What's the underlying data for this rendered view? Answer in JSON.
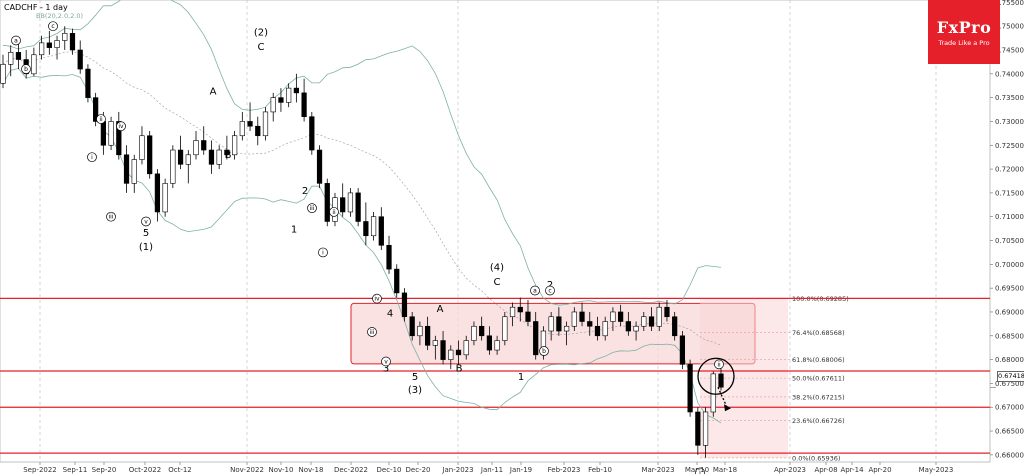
{
  "title": "CADCHF - 1 day",
  "indicator_label": "BB(20,2.0,2.0)",
  "logo": {
    "brand": "FxPro",
    "tagline": "Trade Like a Pro"
  },
  "current_price": "0.67418",
  "colors": {
    "support_line": "#e5202a",
    "box_fill": "#f9d6d6",
    "box_border": "#e5202a",
    "bollinger": "#7fb0a8",
    "candle_up": "#ffffff",
    "candle_down": "#000000",
    "logo_bg": "#e5202a"
  },
  "chart_data": {
    "type": "candlestick",
    "symbol": "CADCHF",
    "timeframe": "1 day",
    "ylim": [
      0.6585,
      0.7555
    ],
    "y_ticks": [
      "0.75500",
      "0.75000",
      "0.74500",
      "0.74000",
      "0.73500",
      "0.73000",
      "0.72500",
      "0.72000",
      "0.71500",
      "0.71000",
      "0.70500",
      "0.70000",
      "0.69500",
      "0.69000",
      "0.68500",
      "0.68000",
      "0.67500",
      "0.67000",
      "0.66500",
      "0.66000"
    ],
    "x_ticks": [
      "Sep-2022",
      "Sep-11",
      "Sep-20",
      "Oct-2022",
      "Oct-12",
      "Nov-2022",
      "Nov-10",
      "Nov-18",
      "Dec-2022",
      "Dec-10",
      "Dec-20",
      "Jan-2023",
      "Jan-11",
      "Jan-19",
      "Feb-2023",
      "Feb-10",
      "Mar-2023",
      "Mar-10",
      "Mar-18",
      "Apr-2023",
      "Apr-08",
      "Apr-14",
      "Apr-20",
      "May-2023"
    ],
    "horizontal_levels": [
      0.69285,
      0.6776,
      0.67,
      0.66036
    ],
    "fibonacci": [
      {
        "label": "100.0%(0.69285)",
        "value": 0.69285
      },
      {
        "label": "76.4%(0.68568)",
        "value": 0.68568
      },
      {
        "label": "61.8%(0.68006)",
        "value": 0.68006
      },
      {
        "label": "50.0%(0.67611)",
        "value": 0.67611
      },
      {
        "label": "38.2%(0.67215)",
        "value": 0.67215
      },
      {
        "label": "23.6%(0.66726)",
        "value": 0.66726
      },
      {
        "label": "0.0%(0.65936)",
        "value": 0.65936
      }
    ],
    "range_box": {
      "top": 0.6918,
      "bottom": 0.6791
    },
    "wave_labels": [
      {
        "text": "(2)",
        "x": 261,
        "y": 0.748
      },
      {
        "text": "C",
        "x": 261,
        "y": 0.745
      },
      {
        "text": "A",
        "x": 213,
        "y": 0.7357
      },
      {
        "text": "B",
        "x": 228,
        "y": 0.7223
      },
      {
        "text": "5",
        "x": 146,
        "y": 0.706
      },
      {
        "text": "(1)",
        "x": 146,
        "y": 0.703
      },
      {
        "text": "2",
        "x": 305,
        "y": 0.7148
      },
      {
        "text": "1",
        "x": 294,
        "y": 0.7067
      },
      {
        "text": "4",
        "x": 390,
        "y": 0.689
      },
      {
        "text": "3",
        "x": 386,
        "y": 0.6775
      },
      {
        "text": "5",
        "x": 415,
        "y": 0.6757
      },
      {
        "text": "(3)",
        "x": 415,
        "y": 0.673
      },
      {
        "text": "A",
        "x": 440,
        "y": 0.69
      },
      {
        "text": "B",
        "x": 459,
        "y": 0.6775
      },
      {
        "text": "(4)",
        "x": 497,
        "y": 0.6987
      },
      {
        "text": "C",
        "x": 497,
        "y": 0.6957
      },
      {
        "text": "2",
        "x": 550,
        "y": 0.695
      },
      {
        "text": "1",
        "x": 521,
        "y": 0.6757
      }
    ],
    "circled_labels": [
      {
        "text": "a",
        "x": 16,
        "y": 0.747
      },
      {
        "text": "b",
        "x": 26,
        "y": 0.741
      },
      {
        "text": "c",
        "x": 53,
        "y": 0.75
      },
      {
        "text": "ii",
        "x": 101,
        "y": 0.7305
      },
      {
        "text": "iv",
        "x": 121,
        "y": 0.729
      },
      {
        "text": "i",
        "x": 92,
        "y": 0.7225
      },
      {
        "text": "iii",
        "x": 111,
        "y": 0.71
      },
      {
        "text": "v",
        "x": 146,
        "y": 0.709
      },
      {
        "text": "iii",
        "x": 312,
        "y": 0.7118
      },
      {
        "text": "ii",
        "x": 334,
        "y": 0.711
      },
      {
        "text": "i",
        "x": 323,
        "y": 0.7025
      },
      {
        "text": "iv",
        "x": 377,
        "y": 0.6928
      },
      {
        "text": "iii",
        "x": 372,
        "y": 0.6858
      },
      {
        "text": "v",
        "x": 386,
        "y": 0.6796
      },
      {
        "text": "a",
        "x": 535,
        "y": 0.6945
      },
      {
        "text": "c",
        "x": 550,
        "y": 0.6945
      },
      {
        "text": "b",
        "x": 544,
        "y": 0.6818
      },
      {
        "text": "i",
        "x": 700,
        "y": 0.6563
      },
      {
        "text": "ii",
        "x": 719,
        "y": 0.679
      }
    ],
    "series": [
      {
        "name": "CADCHF",
        "ohlc": [
          [
            0.738,
            0.744,
            0.737,
            0.742
          ],
          [
            0.742,
            0.746,
            0.7395,
            0.7445
          ],
          [
            0.7445,
            0.747,
            0.741,
            0.743
          ],
          [
            0.743,
            0.745,
            0.739,
            0.74
          ],
          [
            0.74,
            0.7455,
            0.7395,
            0.744
          ],
          [
            0.744,
            0.748,
            0.743,
            0.7465
          ],
          [
            0.7465,
            0.749,
            0.744,
            0.7455
          ],
          [
            0.7455,
            0.748,
            0.743,
            0.747
          ],
          [
            0.747,
            0.75,
            0.745,
            0.7485
          ],
          [
            0.7485,
            0.7495,
            0.744,
            0.745
          ],
          [
            0.745,
            0.747,
            0.74,
            0.741
          ],
          [
            0.741,
            0.742,
            0.734,
            0.735
          ],
          [
            0.735,
            0.736,
            0.729,
            0.73
          ],
          [
            0.73,
            0.732,
            0.723,
            0.725
          ],
          [
            0.725,
            0.731,
            0.724,
            0.73
          ],
          [
            0.73,
            0.732,
            0.722,
            0.723
          ],
          [
            0.723,
            0.725,
            0.715,
            0.717
          ],
          [
            0.717,
            0.723,
            0.715,
            0.722
          ],
          [
            0.722,
            0.729,
            0.721,
            0.727
          ],
          [
            0.727,
            0.728,
            0.718,
            0.719
          ],
          [
            0.719,
            0.72,
            0.709,
            0.711
          ],
          [
            0.711,
            0.718,
            0.71,
            0.717
          ],
          [
            0.717,
            0.725,
            0.716,
            0.724
          ],
          [
            0.724,
            0.727,
            0.72,
            0.721
          ],
          [
            0.721,
            0.724,
            0.717,
            0.723
          ],
          [
            0.723,
            0.728,
            0.722,
            0.726
          ],
          [
            0.726,
            0.729,
            0.723,
            0.724
          ],
          [
            0.724,
            0.726,
            0.719,
            0.721
          ],
          [
            0.721,
            0.725,
            0.72,
            0.724
          ],
          [
            0.724,
            0.727,
            0.722,
            0.723
          ],
          [
            0.723,
            0.728,
            0.722,
            0.727
          ],
          [
            0.727,
            0.732,
            0.726,
            0.73
          ],
          [
            0.73,
            0.734,
            0.728,
            0.729
          ],
          [
            0.729,
            0.731,
            0.725,
            0.727
          ],
          [
            0.727,
            0.733,
            0.726,
            0.732
          ],
          [
            0.732,
            0.736,
            0.73,
            0.735
          ],
          [
            0.735,
            0.737,
            0.732,
            0.734
          ],
          [
            0.734,
            0.738,
            0.733,
            0.737
          ],
          [
            0.737,
            0.74,
            0.734,
            0.736
          ],
          [
            0.736,
            0.739,
            0.73,
            0.731
          ],
          [
            0.731,
            0.732,
            0.723,
            0.724
          ],
          [
            0.724,
            0.725,
            0.716,
            0.717
          ],
          [
            0.717,
            0.718,
            0.708,
            0.709
          ],
          [
            0.709,
            0.715,
            0.708,
            0.714
          ],
          [
            0.714,
            0.717,
            0.71,
            0.711
          ],
          [
            0.711,
            0.716,
            0.71,
            0.715
          ],
          [
            0.715,
            0.716,
            0.708,
            0.709
          ],
          [
            0.709,
            0.713,
            0.704,
            0.706
          ],
          [
            0.706,
            0.711,
            0.705,
            0.71
          ],
          [
            0.71,
            0.712,
            0.703,
            0.704
          ],
          [
            0.704,
            0.706,
            0.698,
            0.699
          ],
          [
            0.699,
            0.7,
            0.693,
            0.694
          ],
          [
            0.694,
            0.695,
            0.688,
            0.689
          ],
          [
            0.689,
            0.69,
            0.684,
            0.685
          ],
          [
            0.685,
            0.688,
            0.683,
            0.687
          ],
          [
            0.687,
            0.689,
            0.682,
            0.683
          ],
          [
            0.683,
            0.685,
            0.68,
            0.684
          ],
          [
            0.684,
            0.686,
            0.679,
            0.68
          ],
          [
            0.68,
            0.683,
            0.678,
            0.682
          ],
          [
            0.682,
            0.684,
            0.679,
            0.681
          ],
          [
            0.681,
            0.685,
            0.68,
            0.684
          ],
          [
            0.684,
            0.688,
            0.683,
            0.687
          ],
          [
            0.687,
            0.689,
            0.684,
            0.685
          ],
          [
            0.685,
            0.687,
            0.681,
            0.682
          ],
          [
            0.682,
            0.685,
            0.681,
            0.684
          ],
          [
            0.684,
            0.69,
            0.683,
            0.689
          ],
          [
            0.689,
            0.692,
            0.687,
            0.691
          ],
          [
            0.691,
            0.693,
            0.688,
            0.69
          ],
          [
            0.69,
            0.6925,
            0.687,
            0.688
          ],
          [
            0.688,
            0.69,
            0.68,
            0.681
          ],
          [
            0.681,
            0.687,
            0.68,
            0.686
          ],
          [
            0.686,
            0.69,
            0.684,
            0.689
          ],
          [
            0.689,
            0.691,
            0.685,
            0.686
          ],
          [
            0.686,
            0.688,
            0.683,
            0.687
          ],
          [
            0.687,
            0.691,
            0.686,
            0.69
          ],
          [
            0.69,
            0.692,
            0.687,
            0.688
          ],
          [
            0.688,
            0.69,
            0.685,
            0.687
          ],
          [
            0.687,
            0.689,
            0.684,
            0.685
          ],
          [
            0.685,
            0.689,
            0.684,
            0.688
          ],
          [
            0.688,
            0.691,
            0.686,
            0.69
          ],
          [
            0.69,
            0.6915,
            0.687,
            0.688
          ],
          [
            0.688,
            0.69,
            0.685,
            0.686
          ],
          [
            0.686,
            0.688,
            0.684,
            0.687
          ],
          [
            0.687,
            0.69,
            0.686,
            0.689
          ],
          [
            0.689,
            0.691,
            0.686,
            0.687
          ],
          [
            0.687,
            0.692,
            0.686,
            0.691
          ],
          [
            0.691,
            0.6925,
            0.688,
            0.689
          ],
          [
            0.689,
            0.69,
            0.684,
            0.685
          ],
          [
            0.685,
            0.686,
            0.678,
            0.679
          ],
          [
            0.679,
            0.68,
            0.668,
            0.669
          ],
          [
            0.669,
            0.67,
            0.66,
            0.662
          ],
          [
            0.662,
            0.67,
            0.6594,
            0.669
          ],
          [
            0.669,
            0.6775,
            0.668,
            0.677
          ],
          [
            0.677,
            0.679,
            0.6735,
            0.6742
          ]
        ]
      }
    ]
  }
}
